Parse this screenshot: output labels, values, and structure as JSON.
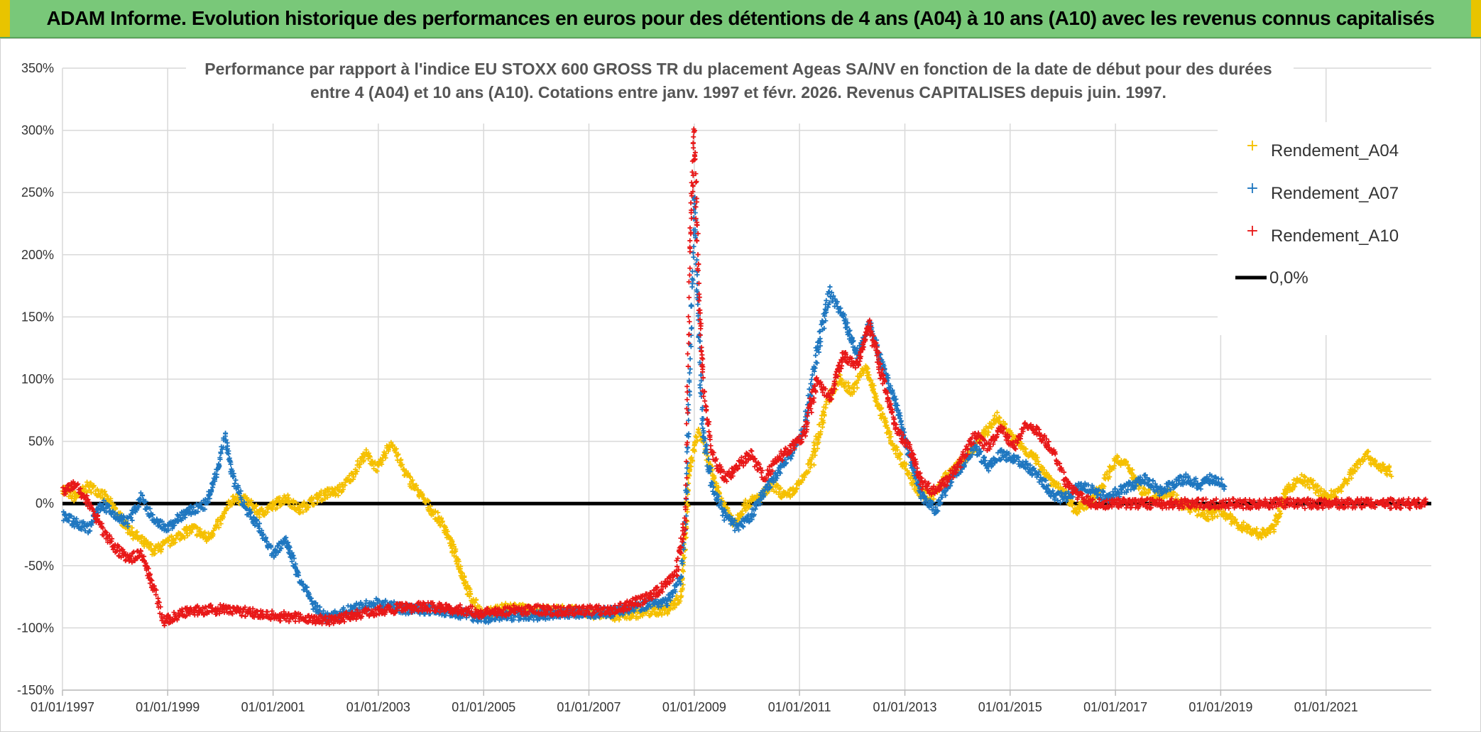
{
  "banner": {
    "title": "ADAM Informe. Evolution historique des performances en euros pour des détentions de 4 ans (A04) à 10 ans (A10) avec les revenus connus capitalisés"
  },
  "colors": {
    "banner_bg": "#79c879",
    "A04": "#f5c000",
    "A07": "#1f77c0",
    "A10": "#e81818",
    "zero_line": "#000000",
    "grid": "#d9d9d9"
  },
  "chart_data": {
    "type": "scatter",
    "title_lines": [
      "Performance par rapport à l'indice EU STOXX 600 GROSS TR  du placement Ageas SA/NV en fonction de la date de début pour des durées",
      "entre 4 (A04) et 10 ans (A10). Cotations entre janv. 1997 et févr. 2026. Revenus CAPITALISES depuis juin. 1997."
    ],
    "x_axis": {
      "type": "date",
      "min": "1997-01-01",
      "max": "2023-01-01",
      "tick_labels": [
        "01/01/1997",
        "01/01/1999",
        "01/01/2001",
        "01/01/2003",
        "01/01/2005",
        "01/01/2007",
        "01/01/2009",
        "01/01/2011",
        "01/01/2013",
        "01/01/2015",
        "01/01/2017",
        "01/01/2019",
        "01/01/2021"
      ],
      "tick_dates": [
        "1997-01-01",
        "1999-01-01",
        "2001-01-01",
        "2003-01-01",
        "2005-01-01",
        "2007-01-01",
        "2009-01-01",
        "2011-01-01",
        "2013-01-01",
        "2015-01-01",
        "2017-01-01",
        "2019-01-01",
        "2021-01-01"
      ]
    },
    "y_axis": {
      "min": -150,
      "max": 350,
      "step": 50,
      "unit": "%",
      "tick_labels": [
        "350%",
        "300%",
        "250%",
        "200%",
        "150%",
        "100%",
        "50%",
        "0%",
        "-50%",
        "-100%",
        "-150%"
      ]
    },
    "grid": true,
    "legend_position": "top-right",
    "marker": "plus",
    "reference_line": {
      "name": "0,0%",
      "value": 0
    },
    "series": [
      {
        "name": "Rendement_A04",
        "color": "#f5c000",
        "points": [
          [
            "1997-01-01",
            12
          ],
          [
            "1997-04-01",
            5
          ],
          [
            "1997-07-01",
            14
          ],
          [
            "1997-10-01",
            8
          ],
          [
            "1998-01-01",
            -5
          ],
          [
            "1998-04-01",
            -20
          ],
          [
            "1998-07-01",
            -30
          ],
          [
            "1998-10-01",
            -38
          ],
          [
            "1999-01-01",
            -32
          ],
          [
            "1999-04-01",
            -25
          ],
          [
            "1999-07-01",
            -20
          ],
          [
            "1999-10-01",
            -28
          ],
          [
            "2000-01-01",
            -15
          ],
          [
            "2000-04-01",
            5
          ],
          [
            "2000-07-01",
            2
          ],
          [
            "2000-10-01",
            -8
          ],
          [
            "2001-01-01",
            -2
          ],
          [
            "2001-04-01",
            5
          ],
          [
            "2001-07-01",
            -5
          ],
          [
            "2001-10-01",
            2
          ],
          [
            "2002-01-01",
            8
          ],
          [
            "2002-04-01",
            10
          ],
          [
            "2002-07-01",
            22
          ],
          [
            "2002-10-01",
            40
          ],
          [
            "2003-01-01",
            28
          ],
          [
            "2003-04-01",
            50
          ],
          [
            "2003-07-01",
            25
          ],
          [
            "2003-10-01",
            10
          ],
          [
            "2004-01-01",
            -5
          ],
          [
            "2004-04-01",
            -18
          ],
          [
            "2004-07-01",
            -45
          ],
          [
            "2004-10-01",
            -75
          ],
          [
            "2005-01-01",
            -90
          ],
          [
            "2005-04-01",
            -85
          ],
          [
            "2005-07-01",
            -83
          ],
          [
            "2005-10-01",
            -85
          ],
          [
            "2006-01-01",
            -87
          ],
          [
            "2006-07-01",
            -85
          ],
          [
            "2007-01-01",
            -88
          ],
          [
            "2007-07-01",
            -90
          ],
          [
            "2008-01-01",
            -88
          ],
          [
            "2008-07-01",
            -85
          ],
          [
            "2008-10-01",
            -75
          ],
          [
            "2008-12-01",
            30
          ],
          [
            "2009-02-01",
            60
          ],
          [
            "2009-04-01",
            35
          ],
          [
            "2009-07-01",
            5
          ],
          [
            "2009-10-01",
            -15
          ],
          [
            "2010-01-01",
            0
          ],
          [
            "2010-04-01",
            5
          ],
          [
            "2010-07-01",
            15
          ],
          [
            "2010-10-01",
            5
          ],
          [
            "2011-01-01",
            15
          ],
          [
            "2011-04-01",
            35
          ],
          [
            "2011-07-01",
            80
          ],
          [
            "2011-10-01",
            100
          ],
          [
            "2012-01-01",
            90
          ],
          [
            "2012-04-01",
            110
          ],
          [
            "2012-07-01",
            80
          ],
          [
            "2012-10-01",
            50
          ],
          [
            "2013-01-01",
            30
          ],
          [
            "2013-04-01",
            10
          ],
          [
            "2013-07-01",
            5
          ],
          [
            "2013-10-01",
            20
          ],
          [
            "2014-01-01",
            30
          ],
          [
            "2014-04-01",
            40
          ],
          [
            "2014-07-01",
            55
          ],
          [
            "2014-10-01",
            70
          ],
          [
            "2015-01-01",
            55
          ],
          [
            "2015-04-01",
            45
          ],
          [
            "2015-07-01",
            35
          ],
          [
            "2015-10-01",
            20
          ],
          [
            "2016-01-01",
            10
          ],
          [
            "2016-04-01",
            -5
          ],
          [
            "2016-07-01",
            0
          ],
          [
            "2016-10-01",
            15
          ],
          [
            "2017-01-01",
            35
          ],
          [
            "2017-04-01",
            30
          ],
          [
            "2017-07-01",
            10
          ],
          [
            "2017-10-01",
            5
          ],
          [
            "2018-01-01",
            10
          ],
          [
            "2018-04-01",
            0
          ],
          [
            "2018-07-01",
            -5
          ],
          [
            "2018-10-01",
            -10
          ],
          [
            "2019-01-01",
            -5
          ],
          [
            "2019-04-01",
            -15
          ],
          [
            "2019-07-01",
            -20
          ],
          [
            "2019-10-01",
            -25
          ],
          [
            "2020-01-01",
            -20
          ],
          [
            "2020-04-01",
            10
          ],
          [
            "2020-07-01",
            20
          ],
          [
            "2020-10-01",
            15
          ],
          [
            "2021-01-01",
            5
          ],
          [
            "2021-04-01",
            10
          ],
          [
            "2021-07-01",
            25
          ],
          [
            "2021-10-01",
            40
          ],
          [
            "2022-01-01",
            30
          ],
          [
            "2022-04-01",
            25
          ]
        ]
      },
      {
        "name": "Rendement_A07",
        "color": "#1f77c0",
        "points": [
          [
            "1997-01-01",
            -10
          ],
          [
            "1997-04-01",
            -15
          ],
          [
            "1997-07-01",
            -20
          ],
          [
            "1997-10-01",
            0
          ],
          [
            "1998-01-01",
            -10
          ],
          [
            "1998-04-01",
            -15
          ],
          [
            "1998-07-01",
            5
          ],
          [
            "1998-10-01",
            -15
          ],
          [
            "1999-01-01",
            -20
          ],
          [
            "1999-04-01",
            -10
          ],
          [
            "1999-07-01",
            -5
          ],
          [
            "1999-10-01",
            0
          ],
          [
            "2000-01-01",
            35
          ],
          [
            "2000-02-01",
            55
          ],
          [
            "2000-04-01",
            20
          ],
          [
            "2000-07-01",
            -5
          ],
          [
            "2000-10-01",
            -20
          ],
          [
            "2001-01-01",
            -40
          ],
          [
            "2001-04-01",
            -30
          ],
          [
            "2001-07-01",
            -60
          ],
          [
            "2001-10-01",
            -80
          ],
          [
            "2002-01-01",
            -92
          ],
          [
            "2002-07-01",
            -85
          ],
          [
            "2003-01-01",
            -80
          ],
          [
            "2003-07-01",
            -85
          ],
          [
            "2004-01-01",
            -85
          ],
          [
            "2004-07-01",
            -88
          ],
          [
            "2005-01-01",
            -92
          ],
          [
            "2005-07-01",
            -90
          ],
          [
            "2006-01-01",
            -90
          ],
          [
            "2006-07-01",
            -88
          ],
          [
            "2007-01-01",
            -88
          ],
          [
            "2007-07-01",
            -87
          ],
          [
            "2008-01-01",
            -82
          ],
          [
            "2008-07-01",
            -78
          ],
          [
            "2008-10-01",
            -60
          ],
          [
            "2008-11-01",
            -10
          ],
          [
            "2008-12-01",
            100
          ],
          [
            "2009-01-01",
            250
          ],
          [
            "2009-02-01",
            140
          ],
          [
            "2009-03-01",
            60
          ],
          [
            "2009-05-01",
            15
          ],
          [
            "2009-08-01",
            -10
          ],
          [
            "2009-11-01",
            -20
          ],
          [
            "2010-02-01",
            -10
          ],
          [
            "2010-05-01",
            10
          ],
          [
            "2010-08-01",
            25
          ],
          [
            "2010-11-01",
            40
          ],
          [
            "2011-02-01",
            60
          ],
          [
            "2011-05-01",
            120
          ],
          [
            "2011-08-01",
            170
          ],
          [
            "2011-11-01",
            150
          ],
          [
            "2012-02-01",
            120
          ],
          [
            "2012-05-01",
            145
          ],
          [
            "2012-08-01",
            110
          ],
          [
            "2012-11-01",
            80
          ],
          [
            "2013-02-01",
            40
          ],
          [
            "2013-05-01",
            5
          ],
          [
            "2013-08-01",
            -5
          ],
          [
            "2013-11-01",
            15
          ],
          [
            "2014-02-01",
            30
          ],
          [
            "2014-05-01",
            45
          ],
          [
            "2014-08-01",
            30
          ],
          [
            "2014-11-01",
            40
          ],
          [
            "2015-02-01",
            35
          ],
          [
            "2015-05-01",
            30
          ],
          [
            "2015-08-01",
            20
          ],
          [
            "2015-11-01",
            5
          ],
          [
            "2016-02-01",
            5
          ],
          [
            "2016-05-01",
            15
          ],
          [
            "2016-08-01",
            10
          ],
          [
            "2016-11-01",
            5
          ],
          [
            "2017-02-01",
            10
          ],
          [
            "2017-05-01",
            15
          ],
          [
            "2017-08-01",
            20
          ],
          [
            "2017-11-01",
            10
          ],
          [
            "2018-02-01",
            15
          ],
          [
            "2018-05-01",
            20
          ],
          [
            "2018-08-01",
            15
          ],
          [
            "2018-11-01",
            20
          ],
          [
            "2019-02-01",
            15
          ]
        ]
      },
      {
        "name": "Rendement_A10",
        "color": "#e81818",
        "points": [
          [
            "1997-01-01",
            10
          ],
          [
            "1997-04-01",
            15
          ],
          [
            "1997-07-01",
            0
          ],
          [
            "1997-10-01",
            -20
          ],
          [
            "1998-01-01",
            -35
          ],
          [
            "1998-04-01",
            -45
          ],
          [
            "1998-07-01",
            -40
          ],
          [
            "1998-10-01",
            -70
          ],
          [
            "1998-12-01",
            -95
          ],
          [
            "1999-03-01",
            -90
          ],
          [
            "1999-07-01",
            -86
          ],
          [
            "2000-01-01",
            -85
          ],
          [
            "2000-07-01",
            -87
          ],
          [
            "2001-01-01",
            -90
          ],
          [
            "2001-07-01",
            -92
          ],
          [
            "2002-01-01",
            -94
          ],
          [
            "2002-07-01",
            -90
          ],
          [
            "2003-01-01",
            -86
          ],
          [
            "2003-07-01",
            -84
          ],
          [
            "2004-01-01",
            -83
          ],
          [
            "2004-07-01",
            -85
          ],
          [
            "2005-01-01",
            -88
          ],
          [
            "2005-07-01",
            -86
          ],
          [
            "2006-01-01",
            -85
          ],
          [
            "2006-07-01",
            -87
          ],
          [
            "2007-01-01",
            -86
          ],
          [
            "2007-07-01",
            -85
          ],
          [
            "2008-01-01",
            -78
          ],
          [
            "2008-05-01",
            -70
          ],
          [
            "2008-09-01",
            -55
          ],
          [
            "2008-11-01",
            -10
          ],
          [
            "2008-12-01",
            200
          ],
          [
            "2009-01-01",
            300
          ],
          [
            "2009-02-01",
            170
          ],
          [
            "2009-03-01",
            100
          ],
          [
            "2009-05-01",
            40
          ],
          [
            "2009-08-01",
            20
          ],
          [
            "2009-11-01",
            30
          ],
          [
            "2010-02-01",
            40
          ],
          [
            "2010-05-01",
            20
          ],
          [
            "2010-08-01",
            35
          ],
          [
            "2010-11-01",
            45
          ],
          [
            "2011-02-01",
            55
          ],
          [
            "2011-05-01",
            100
          ],
          [
            "2011-08-01",
            85
          ],
          [
            "2011-11-01",
            120
          ],
          [
            "2012-02-01",
            110
          ],
          [
            "2012-05-01",
            145
          ],
          [
            "2012-08-01",
            100
          ],
          [
            "2012-11-01",
            60
          ],
          [
            "2013-02-01",
            45
          ],
          [
            "2013-05-01",
            15
          ],
          [
            "2013-08-01",
            10
          ],
          [
            "2013-11-01",
            20
          ],
          [
            "2014-02-01",
            35
          ],
          [
            "2014-05-01",
            55
          ],
          [
            "2014-08-01",
            45
          ],
          [
            "2014-11-01",
            60
          ],
          [
            "2015-02-01",
            45
          ],
          [
            "2015-05-01",
            65
          ],
          [
            "2015-08-01",
            55
          ],
          [
            "2015-11-01",
            40
          ],
          [
            "2016-02-01",
            15
          ],
          [
            "2016-05-01",
            5
          ],
          [
            "2016-08-01",
            0
          ],
          [
            "2017-01-01",
            0
          ],
          [
            "2018-01-01",
            0
          ],
          [
            "2019-01-01",
            0
          ],
          [
            "2020-01-01",
            0
          ],
          [
            "2021-01-01",
            0
          ],
          [
            "2022-01-01",
            0
          ],
          [
            "2022-12-01",
            0
          ]
        ]
      }
    ]
  }
}
